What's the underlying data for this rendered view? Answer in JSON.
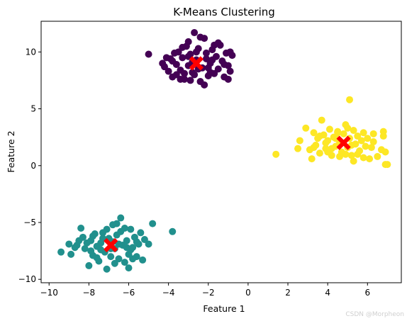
{
  "chart_data": {
    "type": "scatter",
    "title": "K-Means Clustering",
    "xlabel": "Feature 1",
    "ylabel": "Feature 2",
    "xlim": [
      -10.4,
      7.7
    ],
    "ylim": [
      -10.3,
      12.7
    ],
    "xticks": [
      -10,
      -8,
      -6,
      -4,
      -2,
      0,
      2,
      4,
      6
    ],
    "yticks": [
      -10,
      -5,
      0,
      5,
      10
    ],
    "grid": false,
    "legend": "none",
    "series": [
      {
        "color": "#440154",
        "points": [
          [
            -5.0,
            9.8
          ],
          [
            -4.3,
            9.0
          ],
          [
            -4.2,
            8.7
          ],
          [
            -4.0,
            8.3
          ],
          [
            -3.9,
            9.4
          ],
          [
            -3.8,
            7.8
          ],
          [
            -3.6,
            8.9
          ],
          [
            -3.5,
            10.0
          ],
          [
            -3.4,
            8.4
          ],
          [
            -3.3,
            9.5
          ],
          [
            -3.2,
            7.6
          ],
          [
            -3.1,
            10.5
          ],
          [
            -3.0,
            8.8
          ],
          [
            -2.9,
            9.8
          ],
          [
            -2.8,
            8.2
          ],
          [
            -2.7,
            11.7
          ],
          [
            -2.6,
            9.3
          ],
          [
            -2.5,
            10.3
          ],
          [
            -2.4,
            7.4
          ],
          [
            -2.3,
            8.6
          ],
          [
            -2.2,
            11.2
          ],
          [
            -2.1,
            9.9
          ],
          [
            -2.0,
            7.9
          ],
          [
            -1.9,
            9.0
          ],
          [
            -1.8,
            10.2
          ],
          [
            -1.7,
            8.1
          ],
          [
            -1.6,
            9.6
          ],
          [
            -1.5,
            8.5
          ],
          [
            -1.4,
            10.6
          ],
          [
            -1.3,
            9.2
          ],
          [
            -1.2,
            7.8
          ],
          [
            -1.1,
            9.9
          ],
          [
            -1.0,
            8.8
          ],
          [
            -0.9,
            10.0
          ],
          [
            -3.7,
            9.9
          ],
          [
            -3.0,
            10.9
          ],
          [
            -2.2,
            7.1
          ],
          [
            -1.9,
            8.2
          ],
          [
            -3.4,
            7.6
          ],
          [
            -2.7,
            8.0
          ],
          [
            -1.0,
            7.6
          ],
          [
            -0.8,
            9.7
          ],
          [
            -4.1,
            9.5
          ],
          [
            -2.4,
            11.3
          ],
          [
            -3.6,
            8.0
          ],
          [
            -1.7,
            10.6
          ],
          [
            -2.9,
            7.5
          ],
          [
            -2.1,
            9.4
          ],
          [
            -3.2,
            8.1
          ],
          [
            -0.9,
            8.3
          ],
          [
            -1.5,
            10.8
          ],
          [
            -2.6,
            10.0
          ],
          [
            -3.8,
            9.2
          ],
          [
            -2.0,
            8.6
          ],
          [
            -3.3,
            10.4
          ],
          [
            -1.2,
            8.9
          ],
          [
            -2.8,
            9.1
          ],
          [
            -2.5,
            8.5
          ],
          [
            -1.8,
            9.3
          ],
          [
            -3.0,
            9.6
          ]
        ]
      },
      {
        "color": "#21908d",
        "points": [
          [
            -9.4,
            -7.6
          ],
          [
            -9.0,
            -6.9
          ],
          [
            -8.9,
            -7.8
          ],
          [
            -8.6,
            -7.0
          ],
          [
            -8.4,
            -5.5
          ],
          [
            -8.3,
            -6.3
          ],
          [
            -8.2,
            -7.3
          ],
          [
            -8.0,
            -8.8
          ],
          [
            -7.9,
            -6.6
          ],
          [
            -7.8,
            -7.9
          ],
          [
            -7.7,
            -6.0
          ],
          [
            -7.6,
            -7.1
          ],
          [
            -7.5,
            -8.4
          ],
          [
            -7.4,
            -6.8
          ],
          [
            -7.3,
            -5.9
          ],
          [
            -7.2,
            -7.6
          ],
          [
            -7.1,
            -9.1
          ],
          [
            -7.0,
            -6.4
          ],
          [
            -6.9,
            -8.0
          ],
          [
            -6.8,
            -5.2
          ],
          [
            -6.7,
            -7.3
          ],
          [
            -6.6,
            -6.1
          ],
          [
            -6.5,
            -8.2
          ],
          [
            -6.4,
            -5.8
          ],
          [
            -6.3,
            -7.0
          ],
          [
            -6.2,
            -8.5
          ],
          [
            -6.1,
            -6.6
          ],
          [
            -6.0,
            -7.8
          ],
          [
            -5.9,
            -5.6
          ],
          [
            -5.8,
            -7.2
          ],
          [
            -5.7,
            -6.3
          ],
          [
            -5.6,
            -8.0
          ],
          [
            -5.5,
            -6.9
          ],
          [
            -5.4,
            -5.9
          ],
          [
            -5.3,
            -8.3
          ],
          [
            -5.2,
            -6.5
          ],
          [
            -5.0,
            -6.9
          ],
          [
            -4.8,
            -5.1
          ],
          [
            -3.8,
            -5.8
          ],
          [
            -6.4,
            -4.6
          ],
          [
            -6.0,
            -9.0
          ],
          [
            -7.8,
            -6.2
          ],
          [
            -8.5,
            -6.6
          ],
          [
            -6.6,
            -5.1
          ],
          [
            -7.1,
            -5.6
          ],
          [
            -5.9,
            -7.4
          ],
          [
            -6.8,
            -6.7
          ],
          [
            -7.4,
            -7.4
          ],
          [
            -6.2,
            -5.5
          ],
          [
            -5.6,
            -6.7
          ],
          [
            -8.1,
            -6.8
          ],
          [
            -6.9,
            -7.3
          ],
          [
            -7.6,
            -8.1
          ],
          [
            -6.5,
            -6.9
          ],
          [
            -5.8,
            -8.2
          ],
          [
            -7.3,
            -6.4
          ],
          [
            -8.7,
            -7.2
          ],
          [
            -6.1,
            -7.2
          ],
          [
            -6.7,
            -8.6
          ],
          [
            -7.9,
            -7.5
          ]
        ]
      },
      {
        "color": "#fde725",
        "points": [
          [
            1.4,
            1.0
          ],
          [
            2.5,
            1.5
          ],
          [
            2.6,
            2.2
          ],
          [
            2.9,
            3.3
          ],
          [
            3.1,
            1.4
          ],
          [
            3.2,
            0.6
          ],
          [
            3.3,
            2.9
          ],
          [
            3.4,
            1.8
          ],
          [
            3.5,
            2.4
          ],
          [
            3.6,
            1.1
          ],
          [
            3.7,
            4.0
          ],
          [
            3.8,
            2.7
          ],
          [
            3.9,
            1.5
          ],
          [
            4.0,
            2.2
          ],
          [
            4.1,
            3.2
          ],
          [
            4.2,
            0.9
          ],
          [
            4.3,
            2.5
          ],
          [
            4.4,
            1.7
          ],
          [
            4.5,
            3.0
          ],
          [
            4.6,
            2.0
          ],
          [
            4.7,
            1.2
          ],
          [
            4.8,
            2.8
          ],
          [
            4.9,
            3.6
          ],
          [
            5.0,
            1.6
          ],
          [
            5.1,
            5.8
          ],
          [
            5.1,
            2.4
          ],
          [
            5.2,
            0.9
          ],
          [
            5.3,
            3.1
          ],
          [
            5.4,
            1.9
          ],
          [
            5.5,
            2.6
          ],
          [
            5.6,
            1.3
          ],
          [
            5.7,
            2.2
          ],
          [
            5.8,
            2.9
          ],
          [
            5.9,
            1.7
          ],
          [
            6.0,
            2.4
          ],
          [
            6.1,
            0.6
          ],
          [
            6.2,
            1.6
          ],
          [
            6.3,
            2.1
          ],
          [
            6.5,
            0.8
          ],
          [
            6.7,
            1.4
          ],
          [
            6.8,
            2.6
          ],
          [
            6.8,
            3.0
          ],
          [
            6.9,
            1.2
          ],
          [
            6.9,
            0.1
          ],
          [
            7.0,
            0.1
          ],
          [
            5.3,
            0.4
          ],
          [
            4.9,
            1.0
          ],
          [
            4.5,
            2.9
          ],
          [
            3.9,
            2.0
          ],
          [
            4.2,
            1.5
          ],
          [
            5.0,
            3.3
          ],
          [
            5.5,
            1.0
          ],
          [
            4.6,
            0.8
          ],
          [
            3.6,
            2.6
          ],
          [
            4.0,
            1.2
          ],
          [
            5.8,
            0.7
          ],
          [
            6.3,
            2.8
          ],
          [
            4.4,
            2.4
          ],
          [
            5.2,
            1.8
          ],
          [
            3.3,
            1.6
          ]
        ]
      }
    ],
    "centroids": {
      "color": "#ff0000",
      "marker": "X",
      "points": [
        [
          -2.6,
          9.0
        ],
        [
          -6.9,
          -7.0
        ],
        [
          4.8,
          2.0
        ]
      ]
    }
  },
  "watermark": "CSDN @Morpheon"
}
